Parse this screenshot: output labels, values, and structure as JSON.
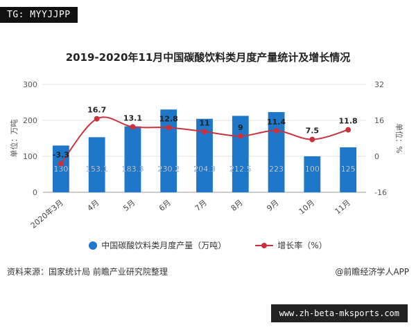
{
  "tag": "TG: MYYJJPP",
  "source": "资料来源：国家统计局 前瞻产业研究院整理",
  "credit": "@前瞻经济学人APP",
  "url": "www.zh-beta-mksports.com",
  "colors": {
    "bar": "#1f77c9",
    "line": "#c8323c"
  },
  "chart_data": {
    "type": "bar",
    "title": "2019-2020年11月中国碳酸饮料类月度产量统计及增长情况",
    "categories": [
      "2020年3月",
      "4月",
      "5月",
      "6月",
      "7月",
      "8月",
      "9月",
      "10月",
      "11月"
    ],
    "ylabel": "单位：万吨",
    "y2label": "单位：%",
    "ylim": [
      0,
      300
    ],
    "yticks": [
      0,
      100,
      200,
      300
    ],
    "y2lim": [
      -16,
      32
    ],
    "y2ticks": [
      -16,
      0,
      16,
      32
    ],
    "legend_position": "bottom",
    "series": [
      {
        "name": "中国碳酸饮料类月度产量（万吨）",
        "type": "bar",
        "axis": "left",
        "values": [
          130,
          153.1,
          183.3,
          230.2,
          204.3,
          212.5,
          223,
          100,
          125
        ],
        "labels": [
          "130",
          "153.1",
          "183.3",
          "230.2",
          "204.3",
          "212.5",
          "223",
          "100",
          "125"
        ]
      },
      {
        "name": "增长率（%）",
        "type": "line",
        "axis": "right",
        "values": [
          -3.3,
          16.7,
          13.1,
          12.8,
          11,
          9,
          11.4,
          7.5,
          11.8
        ],
        "labels": [
          "-3.3",
          "16.7",
          "13.1",
          "12.8",
          "11",
          "9",
          "11.4",
          "7.5",
          "11.8"
        ]
      }
    ]
  }
}
